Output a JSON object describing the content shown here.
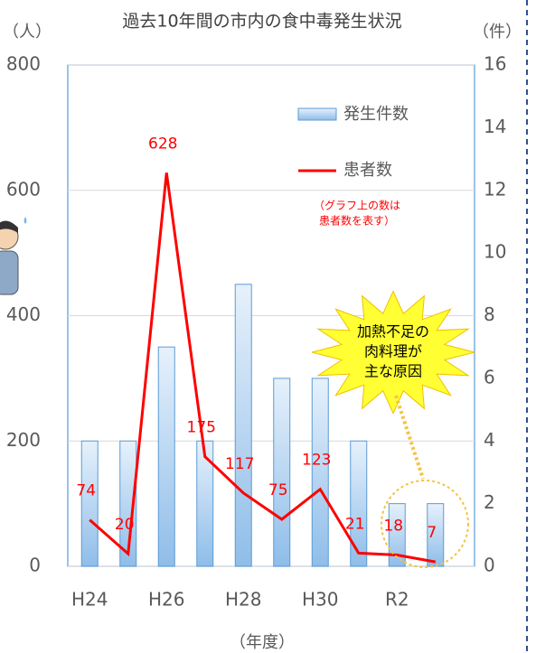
{
  "chart_data": {
    "type": "bar_line",
    "title": "過去10年間の市内の食中毒発生状況",
    "y_label": "（人）",
    "y2_label": "（件）",
    "x_label": "（年度）",
    "categories": [
      "H24",
      null,
      "H26",
      null,
      "H28",
      null,
      "H30",
      null,
      "R2",
      null
    ],
    "series": [
      {
        "name": "発生件数",
        "type": "bar",
        "axis": "y2",
        "color": "#9dc3e6",
        "values": [
          4,
          4,
          7,
          4,
          9,
          6,
          6,
          4,
          2,
          2
        ]
      },
      {
        "name": "患者数",
        "type": "line",
        "color": "#ff0000",
        "values": [
          74,
          20,
          628,
          175,
          117,
          75,
          123,
          21,
          18,
          7
        ]
      }
    ],
    "ylim": [
      0,
      800
    ],
    "yticks": [
      0,
      200,
      400,
      600,
      800
    ],
    "y2lim": [
      0,
      16
    ],
    "y2ticks": [
      0,
      2,
      4,
      6,
      8,
      10,
      12,
      14,
      16
    ],
    "note": [
      "（グラフ上の数は",
      "患者数を表す）"
    ],
    "callout": [
      "加熱不足の",
      "肉料理が",
      "主な原因"
    ]
  }
}
